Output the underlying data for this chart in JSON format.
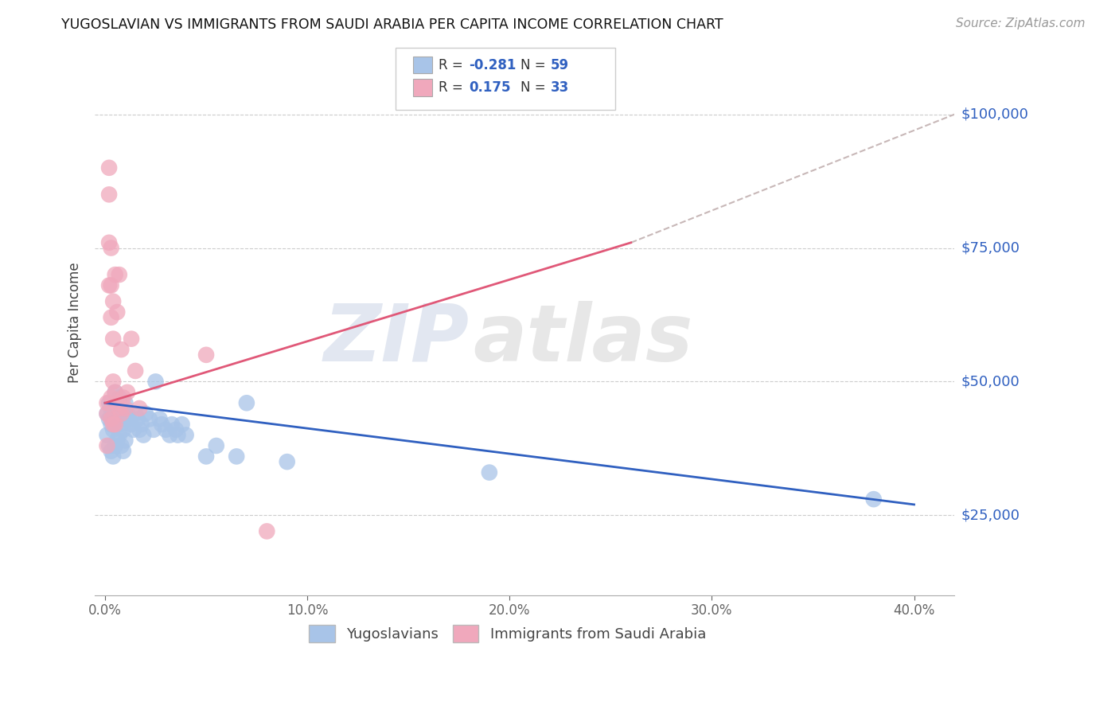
{
  "title": "YUGOSLAVIAN VS IMMIGRANTS FROM SAUDI ARABIA PER CAPITA INCOME CORRELATION CHART",
  "source": "Source: ZipAtlas.com",
  "ylabel": "Per Capita Income",
  "xlabel_ticks": [
    "0.0%",
    "10.0%",
    "20.0%",
    "30.0%",
    "40.0%"
  ],
  "xlabel_vals": [
    0.0,
    0.1,
    0.2,
    0.3,
    0.4
  ],
  "ytick_labels": [
    "$25,000",
    "$50,000",
    "$75,000",
    "$100,000"
  ],
  "ytick_vals": [
    25000,
    50000,
    75000,
    100000
  ],
  "xlim": [
    -0.005,
    0.42
  ],
  "ylim": [
    10000,
    112000
  ],
  "blue_color": "#a8c4e8",
  "pink_color": "#f0a8bc",
  "blue_line_color": "#3060c0",
  "pink_line_color": "#e05878",
  "dashed_line_color": "#c8b8b8",
  "legend_blue_label": "Yugoslavians",
  "legend_pink_label": "Immigrants from Saudi Arabia",
  "watermark_zip": "ZIP",
  "watermark_atlas": "atlas",
  "blue_line_x0": 0.0,
  "blue_line_y0": 46000,
  "blue_line_x1": 0.4,
  "blue_line_y1": 27000,
  "pink_line_x0": 0.0,
  "pink_line_x1": 0.26,
  "pink_line_y0": 46000,
  "pink_line_y1": 76000,
  "dash_line_x0": 0.26,
  "dash_line_x1": 0.42,
  "dash_line_y0": 76000,
  "dash_line_y1": 100000,
  "blue_scatter_x": [
    0.001,
    0.001,
    0.002,
    0.002,
    0.002,
    0.003,
    0.003,
    0.003,
    0.004,
    0.004,
    0.004,
    0.005,
    0.005,
    0.005,
    0.005,
    0.006,
    0.006,
    0.006,
    0.007,
    0.007,
    0.007,
    0.008,
    0.008,
    0.008,
    0.009,
    0.009,
    0.009,
    0.01,
    0.01,
    0.01,
    0.011,
    0.012,
    0.013,
    0.014,
    0.015,
    0.016,
    0.017,
    0.018,
    0.019,
    0.02,
    0.022,
    0.024,
    0.025,
    0.027,
    0.028,
    0.03,
    0.032,
    0.033,
    0.035,
    0.036,
    0.038,
    0.04,
    0.05,
    0.055,
    0.065,
    0.07,
    0.09,
    0.19,
    0.38
  ],
  "blue_scatter_y": [
    44000,
    40000,
    46000,
    43000,
    38000,
    45000,
    42000,
    37000,
    44000,
    41000,
    36000,
    48000,
    45000,
    42000,
    38000,
    46000,
    43000,
    39000,
    47000,
    44000,
    40000,
    45000,
    42000,
    38000,
    44000,
    41000,
    37000,
    46000,
    43000,
    39000,
    44000,
    43000,
    42000,
    41000,
    44000,
    43000,
    41000,
    42000,
    40000,
    44000,
    43000,
    41000,
    50000,
    43000,
    42000,
    41000,
    40000,
    42000,
    41000,
    40000,
    42000,
    40000,
    36000,
    38000,
    36000,
    46000,
    35000,
    33000,
    28000
  ],
  "pink_scatter_x": [
    0.001,
    0.001,
    0.001,
    0.002,
    0.002,
    0.002,
    0.002,
    0.003,
    0.003,
    0.003,
    0.003,
    0.003,
    0.004,
    0.004,
    0.004,
    0.004,
    0.005,
    0.005,
    0.005,
    0.006,
    0.006,
    0.007,
    0.007,
    0.008,
    0.008,
    0.009,
    0.01,
    0.011,
    0.013,
    0.015,
    0.017,
    0.05,
    0.08
  ],
  "pink_scatter_y": [
    46000,
    44000,
    38000,
    90000,
    85000,
    76000,
    68000,
    75000,
    68000,
    62000,
    47000,
    43000,
    65000,
    58000,
    50000,
    42000,
    70000,
    48000,
    42000,
    63000,
    46000,
    70000,
    45000,
    56000,
    44000,
    47000,
    45000,
    48000,
    58000,
    52000,
    45000,
    55000,
    22000
  ]
}
